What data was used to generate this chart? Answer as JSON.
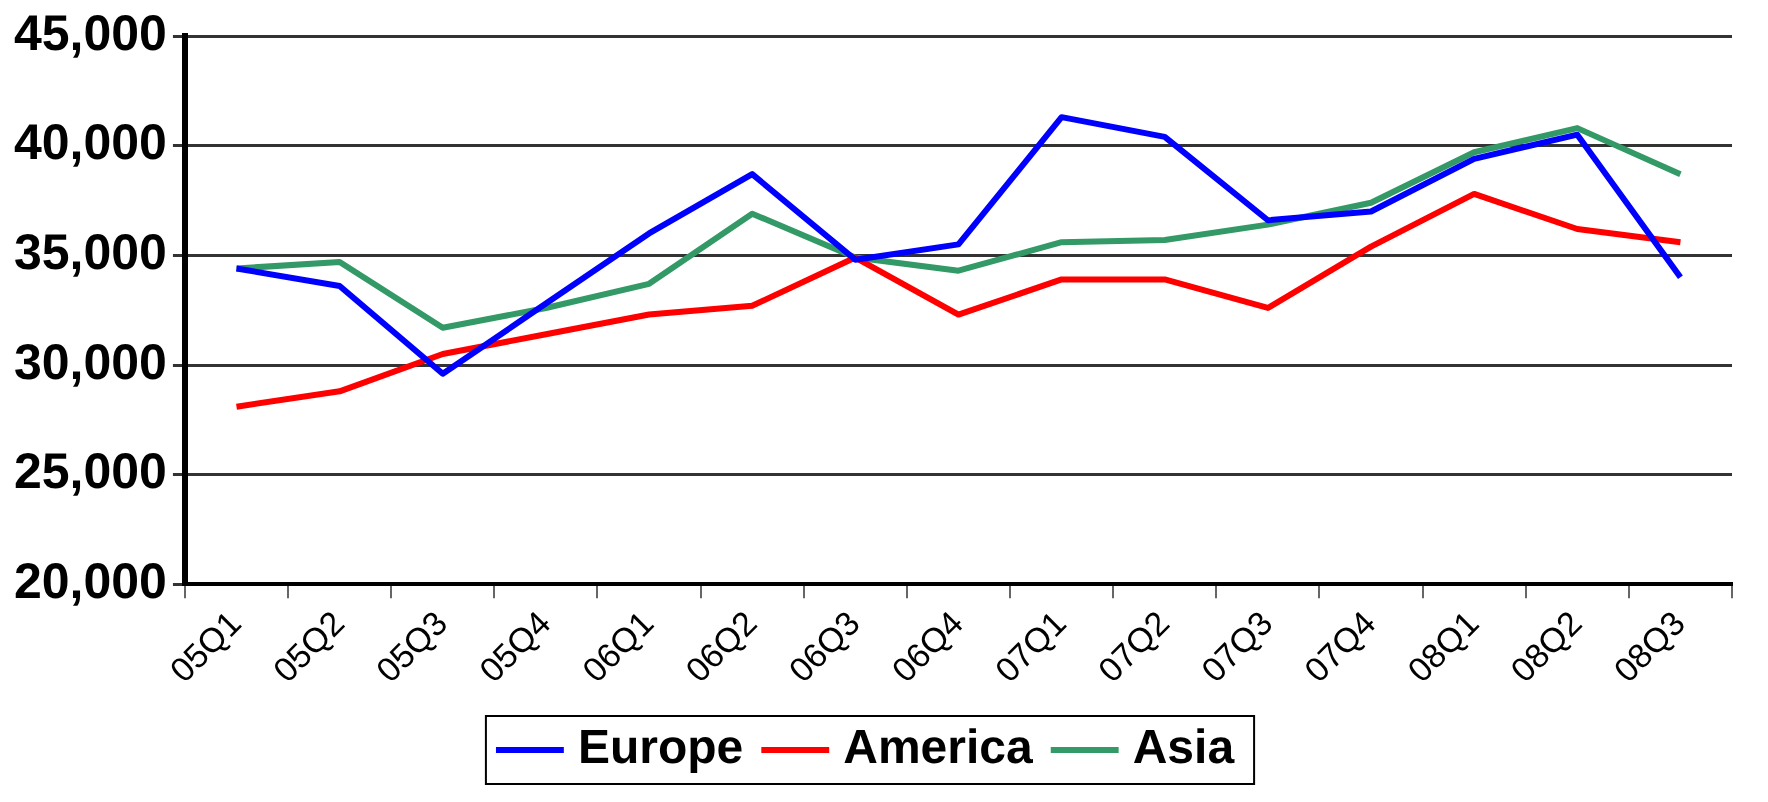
{
  "chart_data": {
    "type": "line",
    "categories": [
      "05Q1",
      "05Q2",
      "05Q3",
      "05Q4",
      "06Q1",
      "06Q2",
      "06Q3",
      "06Q4",
      "07Q1",
      "07Q2",
      "07Q3",
      "07Q4",
      "08Q1",
      "08Q2",
      "08Q3"
    ],
    "series": [
      {
        "name": "Europe",
        "color": "#0000ff",
        "values": [
          34400,
          33600,
          29600,
          32800,
          36000,
          38700,
          34800,
          35500,
          41300,
          40400,
          36600,
          37000,
          39400,
          40500,
          34000
        ]
      },
      {
        "name": "America",
        "color": "#ff0000",
        "values": [
          28100,
          28800,
          30500,
          31400,
          32300,
          32700,
          34900,
          32300,
          33900,
          33900,
          32600,
          35400,
          37800,
          36200,
          35600
        ]
      },
      {
        "name": "Asia",
        "color": "#339966",
        "values": [
          34400,
          34700,
          31700,
          32600,
          33700,
          36900,
          34900,
          34300,
          35600,
          35700,
          36400,
          37400,
          39700,
          40800,
          38700
        ]
      }
    ],
    "ylim": [
      20000,
      45000
    ],
    "yticks": [
      {
        "value": 20000,
        "label": "20,000"
      },
      {
        "value": 25000,
        "label": "25,000"
      },
      {
        "value": 30000,
        "label": "30,000"
      },
      {
        "value": 35000,
        "label": "35,000"
      },
      {
        "value": 40000,
        "label": "40,000"
      },
      {
        "value": 45000,
        "label": "45,000"
      }
    ],
    "grid": "y",
    "legend": "bottom",
    "marker": "none",
    "line_style": "solid"
  }
}
